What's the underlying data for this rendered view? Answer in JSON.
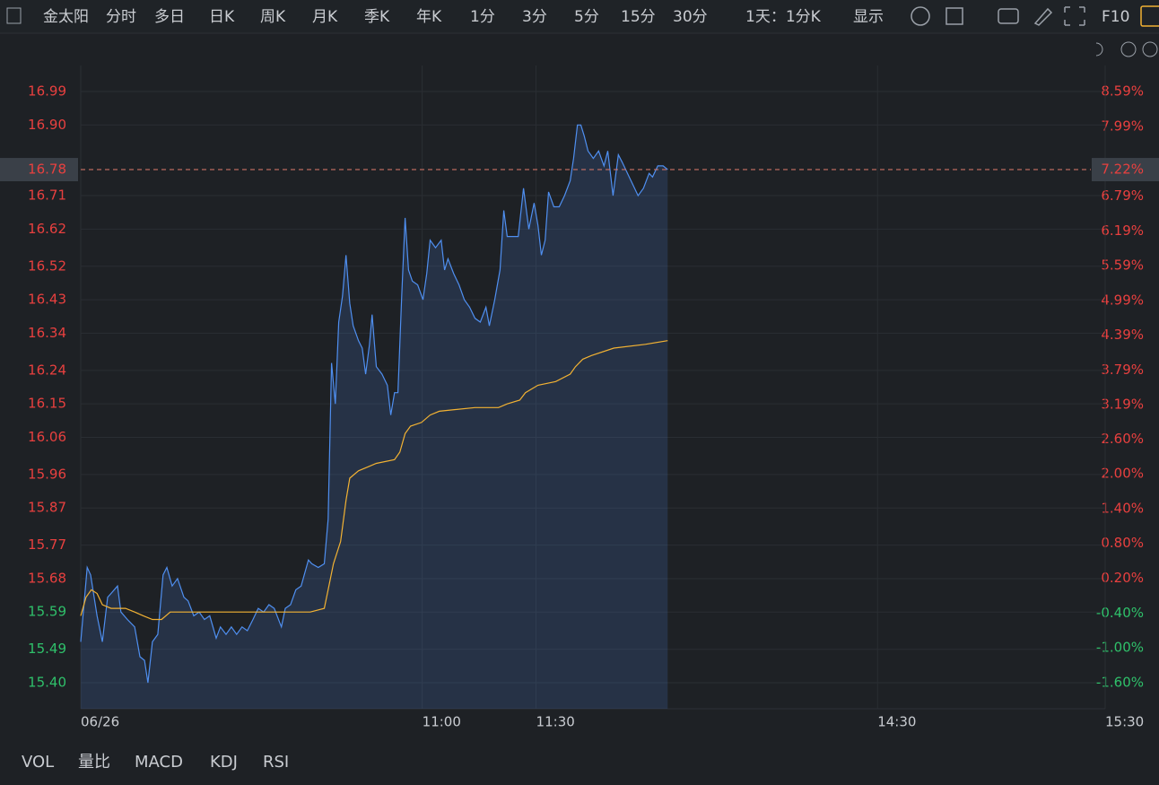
{
  "ui": {
    "toolbar": [
      "金太阳",
      "分时",
      "多日",
      "日K",
      "周K",
      "月K",
      "季K",
      "年K",
      "1分",
      "3分",
      "5分",
      "15分",
      "30分",
      "1天：1分K",
      "显示",
      "F10"
    ],
    "indicators": [
      "VOL",
      "量比",
      "MACD",
      "KDJ",
      "RSI"
    ]
  },
  "chart_data": {
    "type": "line",
    "xlim": [
      0,
      270
    ],
    "xticks": [
      {
        "value": 0,
        "label": "06/26"
      },
      {
        "value": 90,
        "label": "11:00"
      },
      {
        "value": 120,
        "label": "11:30"
      },
      {
        "value": 210,
        "label": "14:30"
      },
      {
        "value": 270,
        "label": "15:30"
      }
    ],
    "ylim": [
      15.33,
      17.06
    ],
    "yticks": [
      {
        "value": 16.99,
        "label": "16.99"
      },
      {
        "value": 16.9,
        "label": "16.90"
      },
      16.71,
      16.62,
      16.52,
      16.43,
      16.34,
      16.24,
      16.15,
      16.06,
      15.96,
      15.87,
      15.77,
      15.68,
      15.59,
      15.49,
      {
        "value": 15.4,
        "label": "15.40"
      }
    ],
    "y2lim": [
      -2.05,
      9.04
    ],
    "y2ticks": [
      {
        "value": 8.59,
        "label": "8.59%"
      },
      {
        "value": 7.99,
        "label": "7.99%"
      },
      {
        "value": 6.79,
        "label": "6.79%"
      },
      {
        "value": 6.19,
        "label": "6.19%"
      },
      {
        "value": 5.59,
        "label": "5.59%"
      },
      {
        "value": 4.99,
        "label": "4.99%"
      },
      {
        "value": 4.39,
        "label": "4.39%"
      },
      {
        "value": 3.79,
        "label": "3.79%"
      },
      {
        "value": 3.19,
        "label": "3.19%"
      },
      {
        "value": 2.6,
        "label": "2.60%"
      },
      {
        "value": 2.0,
        "label": "2.00%"
      },
      {
        "value": 1.4,
        "label": "1.40%"
      },
      {
        "value": 0.8,
        "label": "0.80%"
      },
      {
        "value": 0.2,
        "label": "0.20%"
      },
      {
        "value": -0.4,
        "label": "-0.40%"
      },
      {
        "value": -1.0,
        "label": "-1.00%"
      },
      {
        "value": -1.6,
        "label": "-1.60%"
      }
    ],
    "grid": true,
    "up_color": "#e8403f",
    "down_color": "#2fc06a",
    "last_price": 16.78,
    "last_change": {
      "value": 7.22,
      "label": "7.22%"
    },
    "series": [
      {
        "color": "#4f8ff0",
        "area": true,
        "x": [
          0,
          1.7,
          2.6,
          4.3,
          5.7,
          7.1,
          8.0,
          9.7,
          10.6,
          12.3,
          14.2,
          15.6,
          16.8,
          17.7,
          18.9,
          20.3,
          21.7,
          22.7,
          24.1,
          25.5,
          27.2,
          28.3,
          29.8,
          31.2,
          32.6,
          34.0,
          35.7,
          36.8,
          38.3,
          39.7,
          41.1,
          42.5,
          43.9,
          45.4,
          46.8,
          48.2,
          49.6,
          51.0,
          52.9,
          53.9,
          55.3,
          56.7,
          58.1,
          60.0,
          60.9,
          62.6,
          64.2,
          65.2,
          66.1,
          67.1,
          68.0,
          69.0,
          69.9,
          70.9,
          71.8,
          73.2,
          74.2,
          75.1,
          76.1,
          76.8,
          77.9,
          79.4,
          80.8,
          81.7,
          82.7,
          83.6,
          84.6,
          85.5,
          86.4,
          87.4,
          88.8,
          90.2,
          91.2,
          92.1,
          93.5,
          95.0,
          95.9,
          96.8,
          98.3,
          99.7,
          101.1,
          102.5,
          103.9,
          105.3,
          106.8,
          107.7,
          109.1,
          110.5,
          111.5,
          112.4,
          113.8,
          115.3,
          116.7,
          118.1,
          119.5,
          120.5,
          121.4,
          122.4,
          123.3,
          124.7,
          126.1,
          127.5,
          129.0,
          129.9,
          130.9,
          131.8,
          132.7,
          133.7,
          135.1,
          136.5,
          137.9,
          138.9,
          140.3,
          141.7,
          142.7,
          144.1,
          145.5,
          146.9,
          148.3,
          149.8,
          150.7,
          152.1,
          153.5,
          154.7
        ],
        "values": [
          15.51,
          15.71,
          15.69,
          15.58,
          15.51,
          15.63,
          15.64,
          15.66,
          15.59,
          15.57,
          15.55,
          15.47,
          15.46,
          15.4,
          15.51,
          15.53,
          15.69,
          15.71,
          15.66,
          15.68,
          15.63,
          15.62,
          15.58,
          15.59,
          15.57,
          15.58,
          15.52,
          15.55,
          15.53,
          15.55,
          15.53,
          15.55,
          15.54,
          15.57,
          15.6,
          15.59,
          15.61,
          15.6,
          15.55,
          15.6,
          15.61,
          15.65,
          15.66,
          15.73,
          15.72,
          15.71,
          15.72,
          15.84,
          16.26,
          16.15,
          16.37,
          16.44,
          16.55,
          16.42,
          16.36,
          16.32,
          16.3,
          16.23,
          16.31,
          16.39,
          16.25,
          16.23,
          16.2,
          16.12,
          16.18,
          16.18,
          16.44,
          16.65,
          16.51,
          16.48,
          16.47,
          16.43,
          16.5,
          16.59,
          16.57,
          16.59,
          16.51,
          16.54,
          16.5,
          16.47,
          16.43,
          16.41,
          16.38,
          16.37,
          16.41,
          16.36,
          16.43,
          16.51,
          16.67,
          16.6,
          16.6,
          16.6,
          16.73,
          16.62,
          16.69,
          16.63,
          16.55,
          16.59,
          16.72,
          16.68,
          16.68,
          16.71,
          16.75,
          16.81,
          16.9,
          16.9,
          16.87,
          16.83,
          16.81,
          16.83,
          16.79,
          16.83,
          16.71,
          16.82,
          16.8,
          16.77,
          16.74,
          16.71,
          16.73,
          16.77,
          16.76,
          16.79,
          16.79,
          16.78
        ]
      },
      {
        "color": "#f2b233",
        "area": false,
        "x": [
          0,
          1.4,
          2.8,
          4.3,
          5.7,
          8.0,
          11.8,
          14.2,
          16.5,
          18.9,
          21.3,
          23.6,
          28.3,
          35.4,
          44.9,
          60.5,
          64.2,
          65.2,
          66.6,
          68.5,
          69.9,
          70.9,
          73.2,
          75.6,
          77.9,
          82.7,
          84.1,
          85.5,
          86.9,
          89.8,
          92.1,
          94.5,
          103.9,
          110.1,
          112.4,
          115.7,
          117.2,
          120.5,
          125.2,
          129.0,
          130.4,
          132.3,
          134.6,
          140.5,
          148.8,
          154.7
        ],
        "values": [
          15.58,
          15.63,
          15.65,
          15.64,
          15.61,
          15.6,
          15.6,
          15.59,
          15.58,
          15.57,
          15.57,
          15.59,
          15.59,
          15.59,
          15.59,
          15.59,
          15.6,
          15.65,
          15.72,
          15.78,
          15.89,
          15.95,
          15.97,
          15.98,
          15.99,
          16.0,
          16.02,
          16.07,
          16.09,
          16.1,
          16.12,
          16.13,
          16.14,
          16.14,
          16.15,
          16.16,
          16.18,
          16.2,
          16.21,
          16.23,
          16.25,
          16.27,
          16.28,
          16.3,
          16.31,
          16.32
        ]
      }
    ]
  }
}
